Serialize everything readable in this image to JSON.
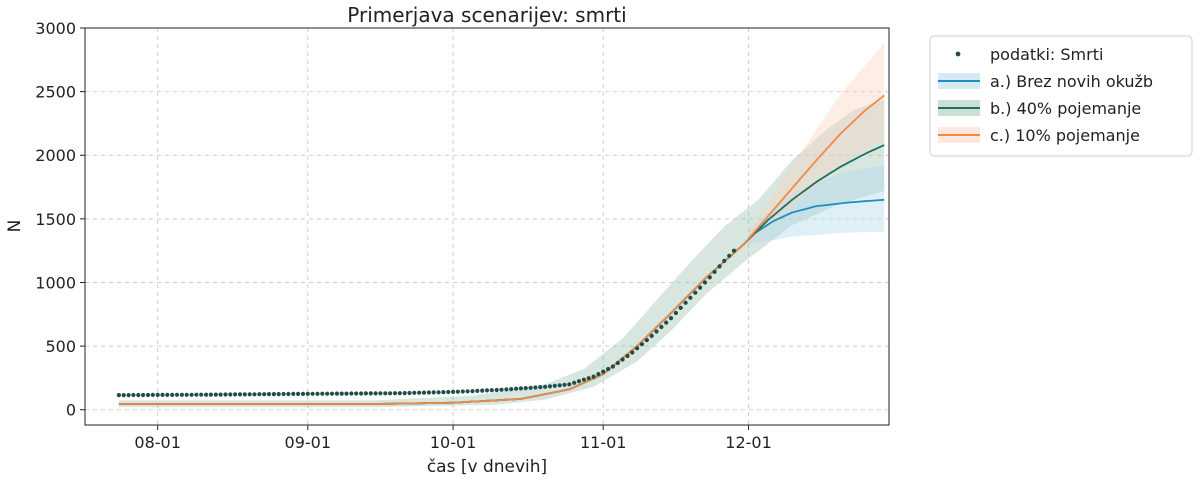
{
  "chart_data": {
    "type": "line",
    "title": "Primerjava scenarijev: smrti",
    "xlabel": "čas [v dnevih]",
    "ylabel": "N",
    "x_type": "date",
    "xlim": [
      "2020-07-17",
      "2020-12-30"
    ],
    "ylim": [
      -120,
      3000
    ],
    "x_ticks": [
      {
        "date": "2020-08-01",
        "label": "08-01"
      },
      {
        "date": "2020-09-01",
        "label": "09-01"
      },
      {
        "date": "2020-10-01",
        "label": "10-01"
      },
      {
        "date": "2020-11-01",
        "label": "11-01"
      },
      {
        "date": "2020-12-01",
        "label": "12-01"
      }
    ],
    "y_ticks": [
      0,
      500,
      1000,
      1500,
      2000,
      2500,
      3000
    ],
    "grid": true,
    "legend_position": "outside-right-top",
    "observed": {
      "name": "podatki: Smrti",
      "color": "#1f4e4a",
      "start": "2020-07-24",
      "end": "2020-11-28",
      "points": [
        [
          "2020-07-24",
          115
        ],
        [
          "2020-08-10",
          118
        ],
        [
          "2020-09-01",
          125
        ],
        [
          "2020-09-20",
          130
        ],
        [
          "2020-10-01",
          140
        ],
        [
          "2020-10-10",
          155
        ],
        [
          "2020-10-20",
          180
        ],
        [
          "2020-10-25",
          200
        ],
        [
          "2020-10-30",
          260
        ],
        [
          "2020-11-03",
          340
        ],
        [
          "2020-11-07",
          450
        ],
        [
          "2020-11-11",
          580
        ],
        [
          "2020-11-15",
          720
        ],
        [
          "2020-11-19",
          880
        ],
        [
          "2020-11-23",
          1040
        ],
        [
          "2020-11-26",
          1170
        ],
        [
          "2020-11-28",
          1250
        ]
      ]
    },
    "series": [
      {
        "name": "a.) Brez novih okužb",
        "color": "#1f8fc0",
        "band_color": "#aed6ee",
        "band_opacity": 0.4,
        "start": "2020-07-24",
        "end": "2020-12-29",
        "points": [
          [
            "2020-07-24",
            45
          ],
          [
            "2020-08-15",
            45
          ],
          [
            "2020-09-15",
            45
          ],
          [
            "2020-10-01",
            55
          ],
          [
            "2020-10-15",
            85
          ],
          [
            "2020-10-25",
            160
          ],
          [
            "2020-11-01",
            280
          ],
          [
            "2020-11-08",
            500
          ],
          [
            "2020-11-15",
            760
          ],
          [
            "2020-11-22",
            1030
          ],
          [
            "2020-11-30",
            1300
          ],
          [
            "2020-12-02",
            1380
          ],
          [
            "2020-12-06",
            1480
          ],
          [
            "2020-12-10",
            1550
          ],
          [
            "2020-12-15",
            1600
          ],
          [
            "2020-12-22",
            1630
          ],
          [
            "2020-12-29",
            1650
          ]
        ],
        "lower": [
          [
            "2020-12-01",
            1300
          ],
          [
            "2020-12-10",
            1360
          ],
          [
            "2020-12-20",
            1390
          ],
          [
            "2020-12-29",
            1400
          ]
        ],
        "upper": [
          [
            "2020-12-01",
            1420
          ],
          [
            "2020-12-10",
            1700
          ],
          [
            "2020-12-20",
            1860
          ],
          [
            "2020-12-29",
            1920
          ]
        ]
      },
      {
        "name": "b.) 40% pojemanje",
        "color": "#1f6f5f",
        "band_color": "#8fb7a7",
        "band_opacity": 0.35,
        "start": "2020-07-24",
        "end": "2020-12-29",
        "points": [
          [
            "2020-07-24",
            45
          ],
          [
            "2020-08-15",
            45
          ],
          [
            "2020-09-15",
            45
          ],
          [
            "2020-10-01",
            55
          ],
          [
            "2020-10-15",
            85
          ],
          [
            "2020-10-25",
            160
          ],
          [
            "2020-11-01",
            280
          ],
          [
            "2020-11-08",
            500
          ],
          [
            "2020-11-15",
            760
          ],
          [
            "2020-11-22",
            1030
          ],
          [
            "2020-11-30",
            1300
          ],
          [
            "2020-12-05",
            1490
          ],
          [
            "2020-12-10",
            1650
          ],
          [
            "2020-12-15",
            1790
          ],
          [
            "2020-12-20",
            1910
          ],
          [
            "2020-12-25",
            2010
          ],
          [
            "2020-12-29",
            2080
          ]
        ],
        "lower": [
          [
            "2020-07-24",
            20
          ],
          [
            "2020-09-15",
            20
          ],
          [
            "2020-10-10",
            40
          ],
          [
            "2020-10-20",
            80
          ],
          [
            "2020-10-30",
            180
          ],
          [
            "2020-11-08",
            380
          ],
          [
            "2020-11-15",
            620
          ],
          [
            "2020-11-22",
            900
          ],
          [
            "2020-11-30",
            1160
          ],
          [
            "2020-12-10",
            1450
          ],
          [
            "2020-12-20",
            1620
          ],
          [
            "2020-12-29",
            1720
          ]
        ],
        "upper": [
          [
            "2020-07-24",
            75
          ],
          [
            "2020-09-15",
            75
          ],
          [
            "2020-10-05",
            110
          ],
          [
            "2020-10-20",
            200
          ],
          [
            "2020-10-28",
            320
          ],
          [
            "2020-11-05",
            560
          ],
          [
            "2020-11-12",
            860
          ],
          [
            "2020-11-19",
            1160
          ],
          [
            "2020-11-26",
            1440
          ],
          [
            "2020-12-03",
            1650
          ],
          [
            "2020-12-10",
            1960
          ],
          [
            "2020-12-17",
            2200
          ],
          [
            "2020-12-23",
            2360
          ],
          [
            "2020-12-29",
            2440
          ]
        ]
      },
      {
        "name": "c.) 10% pojemanje",
        "color": "#f08a46",
        "band_color": "#fbd3bd",
        "band_opacity": 0.4,
        "start": "2020-07-24",
        "end": "2020-12-29",
        "points": [
          [
            "2020-07-24",
            45
          ],
          [
            "2020-08-15",
            45
          ],
          [
            "2020-09-15",
            45
          ],
          [
            "2020-10-01",
            55
          ],
          [
            "2020-10-15",
            85
          ],
          [
            "2020-10-25",
            160
          ],
          [
            "2020-11-01",
            280
          ],
          [
            "2020-11-08",
            500
          ],
          [
            "2020-11-15",
            760
          ],
          [
            "2020-11-22",
            1030
          ],
          [
            "2020-11-30",
            1300
          ],
          [
            "2020-12-05",
            1520
          ],
          [
            "2020-12-10",
            1740
          ],
          [
            "2020-12-15",
            1960
          ],
          [
            "2020-12-20",
            2170
          ],
          [
            "2020-12-25",
            2350
          ],
          [
            "2020-12-29",
            2470
          ]
        ],
        "lower": [
          [
            "2020-12-01",
            1300
          ],
          [
            "2020-12-10",
            1600
          ],
          [
            "2020-12-20",
            1920
          ],
          [
            "2020-12-29",
            2130
          ]
        ],
        "upper": [
          [
            "2020-12-01",
            1400
          ],
          [
            "2020-12-10",
            1920
          ],
          [
            "2020-12-20",
            2480
          ],
          [
            "2020-12-29",
            2880
          ]
        ]
      }
    ]
  }
}
